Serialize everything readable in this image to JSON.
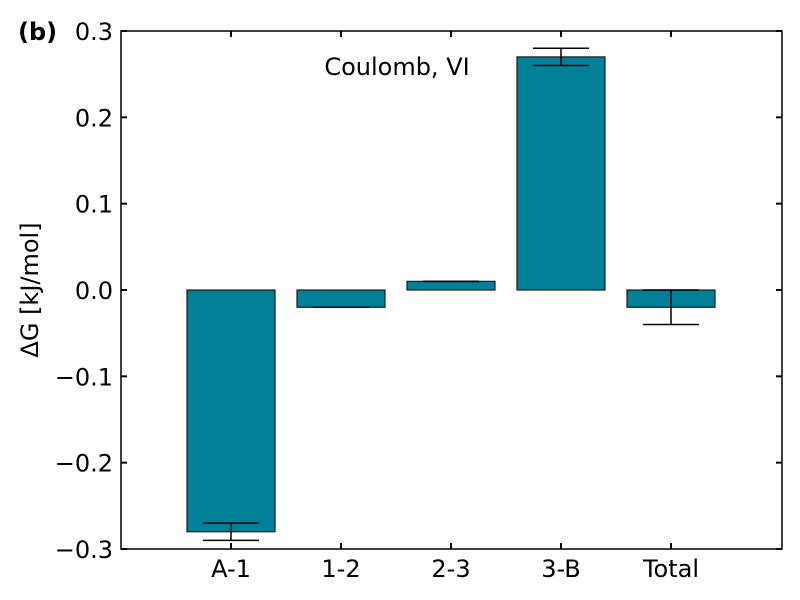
{
  "colors": {
    "bar_fill": "#008099",
    "bar_stroke": "#1a1a1a",
    "axis": "#000000"
  },
  "chart_data": {
    "type": "bar",
    "panel_label": "(b)",
    "annotation": "Coulomb, VI",
    "ylabel": "ΔG [kJ/mol]",
    "xlabel": "",
    "ylim": [
      -0.3,
      0.3
    ],
    "yticks": [
      0.3,
      0.2,
      0.1,
      0.0,
      -0.1,
      -0.2,
      -0.3
    ],
    "ytick_labels": [
      "0.3",
      "0.2",
      "0.1",
      "0.0",
      "−0.1",
      "−0.2",
      "−0.3"
    ],
    "categories": [
      "A-1",
      "1-2",
      "2-3",
      "3-B",
      "Total"
    ],
    "values": [
      -0.28,
      -0.02,
      0.01,
      0.27,
      -0.02
    ],
    "errors": [
      0.01,
      0.0,
      0.0,
      0.01,
      0.02
    ],
    "grid": false,
    "legend": "none"
  }
}
